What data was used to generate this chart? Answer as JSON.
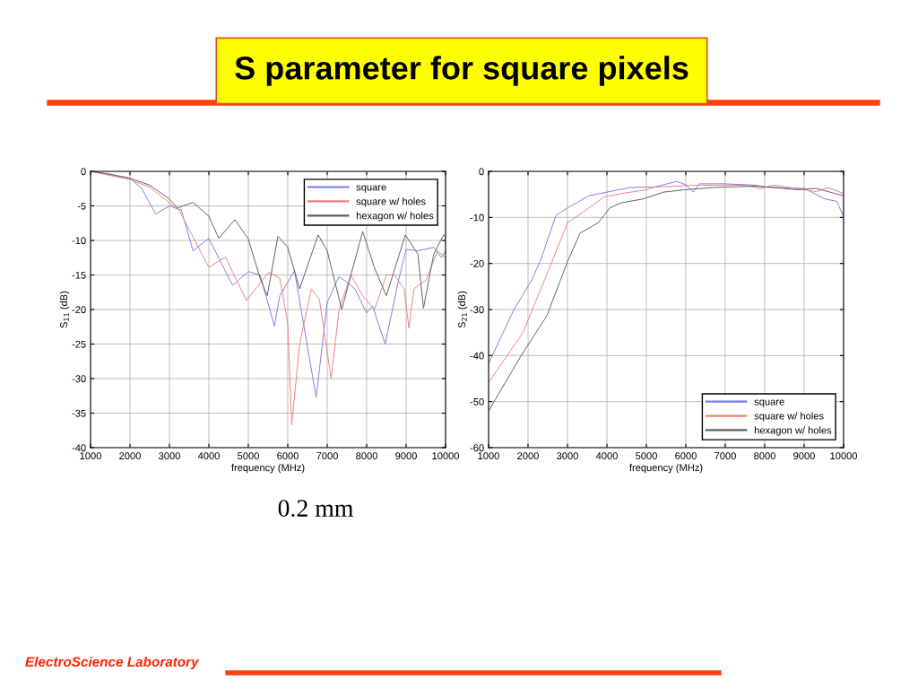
{
  "chart_data": [
    {
      "type": "line",
      "title": "S parameter for square pixels",
      "xlabel": "frequency (MHz)",
      "ylabel": "S$_{11}$ (dB)",
      "annotations": [
        "0.2 mm",
        "ElectroScience Laboratory"
      ],
      "xlim": [
        1000,
        10000
      ],
      "ylim": [
        -40,
        0
      ],
      "xticks": [
        1000,
        2000,
        3000,
        4000,
        5000,
        6000,
        7000,
        8000,
        9000,
        10000
      ],
      "yticks": [
        -40,
        -35,
        -30,
        -25,
        -20,
        -15,
        -10,
        -5,
        0
      ],
      "grid": true,
      "legend": "top right",
      "series": [
        {
          "name": "square",
          "color": "#7b7bf0",
          "x": [
            1000,
            2000,
            2300,
            2650,
            3000,
            3300,
            3600,
            4000,
            4600,
            5000,
            5300,
            5660,
            5800,
            6170,
            6720,
            7000,
            7300,
            7700,
            8000,
            8150,
            8470,
            8800,
            9000,
            9300,
            9700,
            9900,
            10000
          ],
          "values": [
            0,
            -1,
            -2.5,
            -6.2,
            -5,
            -5.6,
            -11.5,
            -9.7,
            -16.5,
            -14.5,
            -15,
            -22.4,
            -18,
            -14.4,
            -32.7,
            -19,
            -15.2,
            -17,
            -20.5,
            -19.5,
            -25,
            -16,
            -11.3,
            -11.5,
            -11,
            -12.5,
            -11.5
          ]
        },
        {
          "name": "square w/ holes",
          "color": "#f08080",
          "x": [
            1000,
            2000,
            2500,
            3250,
            4000,
            4420,
            4950,
            5520,
            5800,
            6000,
            6100,
            6300,
            6600,
            6800,
            7100,
            7300,
            7600,
            7900,
            8200,
            8500,
            8700,
            8950,
            9070,
            9200,
            9500,
            9800,
            10000
          ],
          "values": [
            0,
            -1.2,
            -2.3,
            -5.7,
            -13.9,
            -12.4,
            -18.7,
            -14.6,
            -15.5,
            -22,
            -36.7,
            -25,
            -17,
            -18.5,
            -30,
            -20,
            -15,
            -18,
            -20,
            -15,
            -15,
            -17,
            -22.7,
            -17,
            -15.8,
            -11.5,
            -12.5
          ]
        },
        {
          "name": "hexagon w/ holes",
          "color": "#606060",
          "x": [
            1000,
            1500,
            2000,
            2500,
            3000,
            3200,
            3600,
            4000,
            4250,
            4660,
            5000,
            5300,
            5480,
            5750,
            6000,
            6300,
            6770,
            7000,
            7370,
            7600,
            7900,
            8200,
            8500,
            8980,
            9300,
            9440,
            9700,
            9950,
            10000
          ],
          "values": [
            0,
            -0.4,
            -1,
            -2,
            -4,
            -5.3,
            -4.5,
            -6.5,
            -9.7,
            -7,
            -9.8,
            -15.5,
            -18,
            -9.4,
            -11,
            -17,
            -9.2,
            -11.5,
            -20,
            -15,
            -8.7,
            -14,
            -18,
            -9.2,
            -12,
            -19.8,
            -12,
            -9.2,
            -9.5
          ]
        }
      ]
    },
    {
      "type": "line",
      "xlabel": "frequency (MHz)",
      "ylabel": "S$_{21}$ (dB)",
      "xlim": [
        1000,
        10000
      ],
      "ylim": [
        -60,
        0
      ],
      "xticks": [
        1000,
        2000,
        3000,
        4000,
        5000,
        6000,
        7000,
        8000,
        9000,
        10000
      ],
      "yticks": [
        -60,
        -50,
        -40,
        -30,
        -20,
        -10,
        0
      ],
      "grid": true,
      "legend": "bottom right",
      "series": [
        {
          "name": "square",
          "color": "#7b7bf0",
          "x": [
            1000,
            1645,
            2100,
            2330,
            2710,
            3010,
            3540,
            4000,
            4600,
            5200,
            5770,
            6000,
            6190,
            6340,
            6950,
            7780,
            8000,
            9000,
            9530,
            9830,
            10000
          ],
          "values": [
            -41.7,
            -30,
            -23.5,
            -19,
            -9.5,
            -7.9,
            -5.3,
            -4.5,
            -3.5,
            -3.4,
            -2.2,
            -2.9,
            -4.5,
            -2.7,
            -2.7,
            -3,
            -3.4,
            -3.7,
            -6,
            -6.5,
            -9.9
          ]
        },
        {
          "name": "square w/ holes",
          "color": "#f08080",
          "x": [
            1000,
            1870,
            2400,
            3000,
            3390,
            3920,
            4450,
            5000,
            5200,
            6340,
            7480,
            7890,
            8240,
            9000,
            9300,
            9600,
            10000
          ],
          "values": [
            -45.9,
            -35,
            -24,
            -11.2,
            -8.9,
            -5.6,
            -4.7,
            -4,
            -3.4,
            -3,
            -3,
            -3.7,
            -3,
            -4,
            -4.4,
            -3.5,
            -4.8
          ]
        },
        {
          "name": "hexagon w/ holes",
          "color": "#606060",
          "x": [
            1000,
            1800,
            2480,
            3000,
            3320,
            3770,
            4080,
            4380,
            4910,
            5440,
            5960,
            6720,
            7780,
            8850,
            9300,
            10000
          ],
          "values": [
            -52,
            -40.4,
            -31.3,
            -19.6,
            -13.4,
            -11.2,
            -7.9,
            -6.8,
            -6,
            -4.5,
            -4,
            -3.5,
            -3.2,
            -4,
            -3.7,
            -5.3
          ]
        }
      ]
    }
  ]
}
